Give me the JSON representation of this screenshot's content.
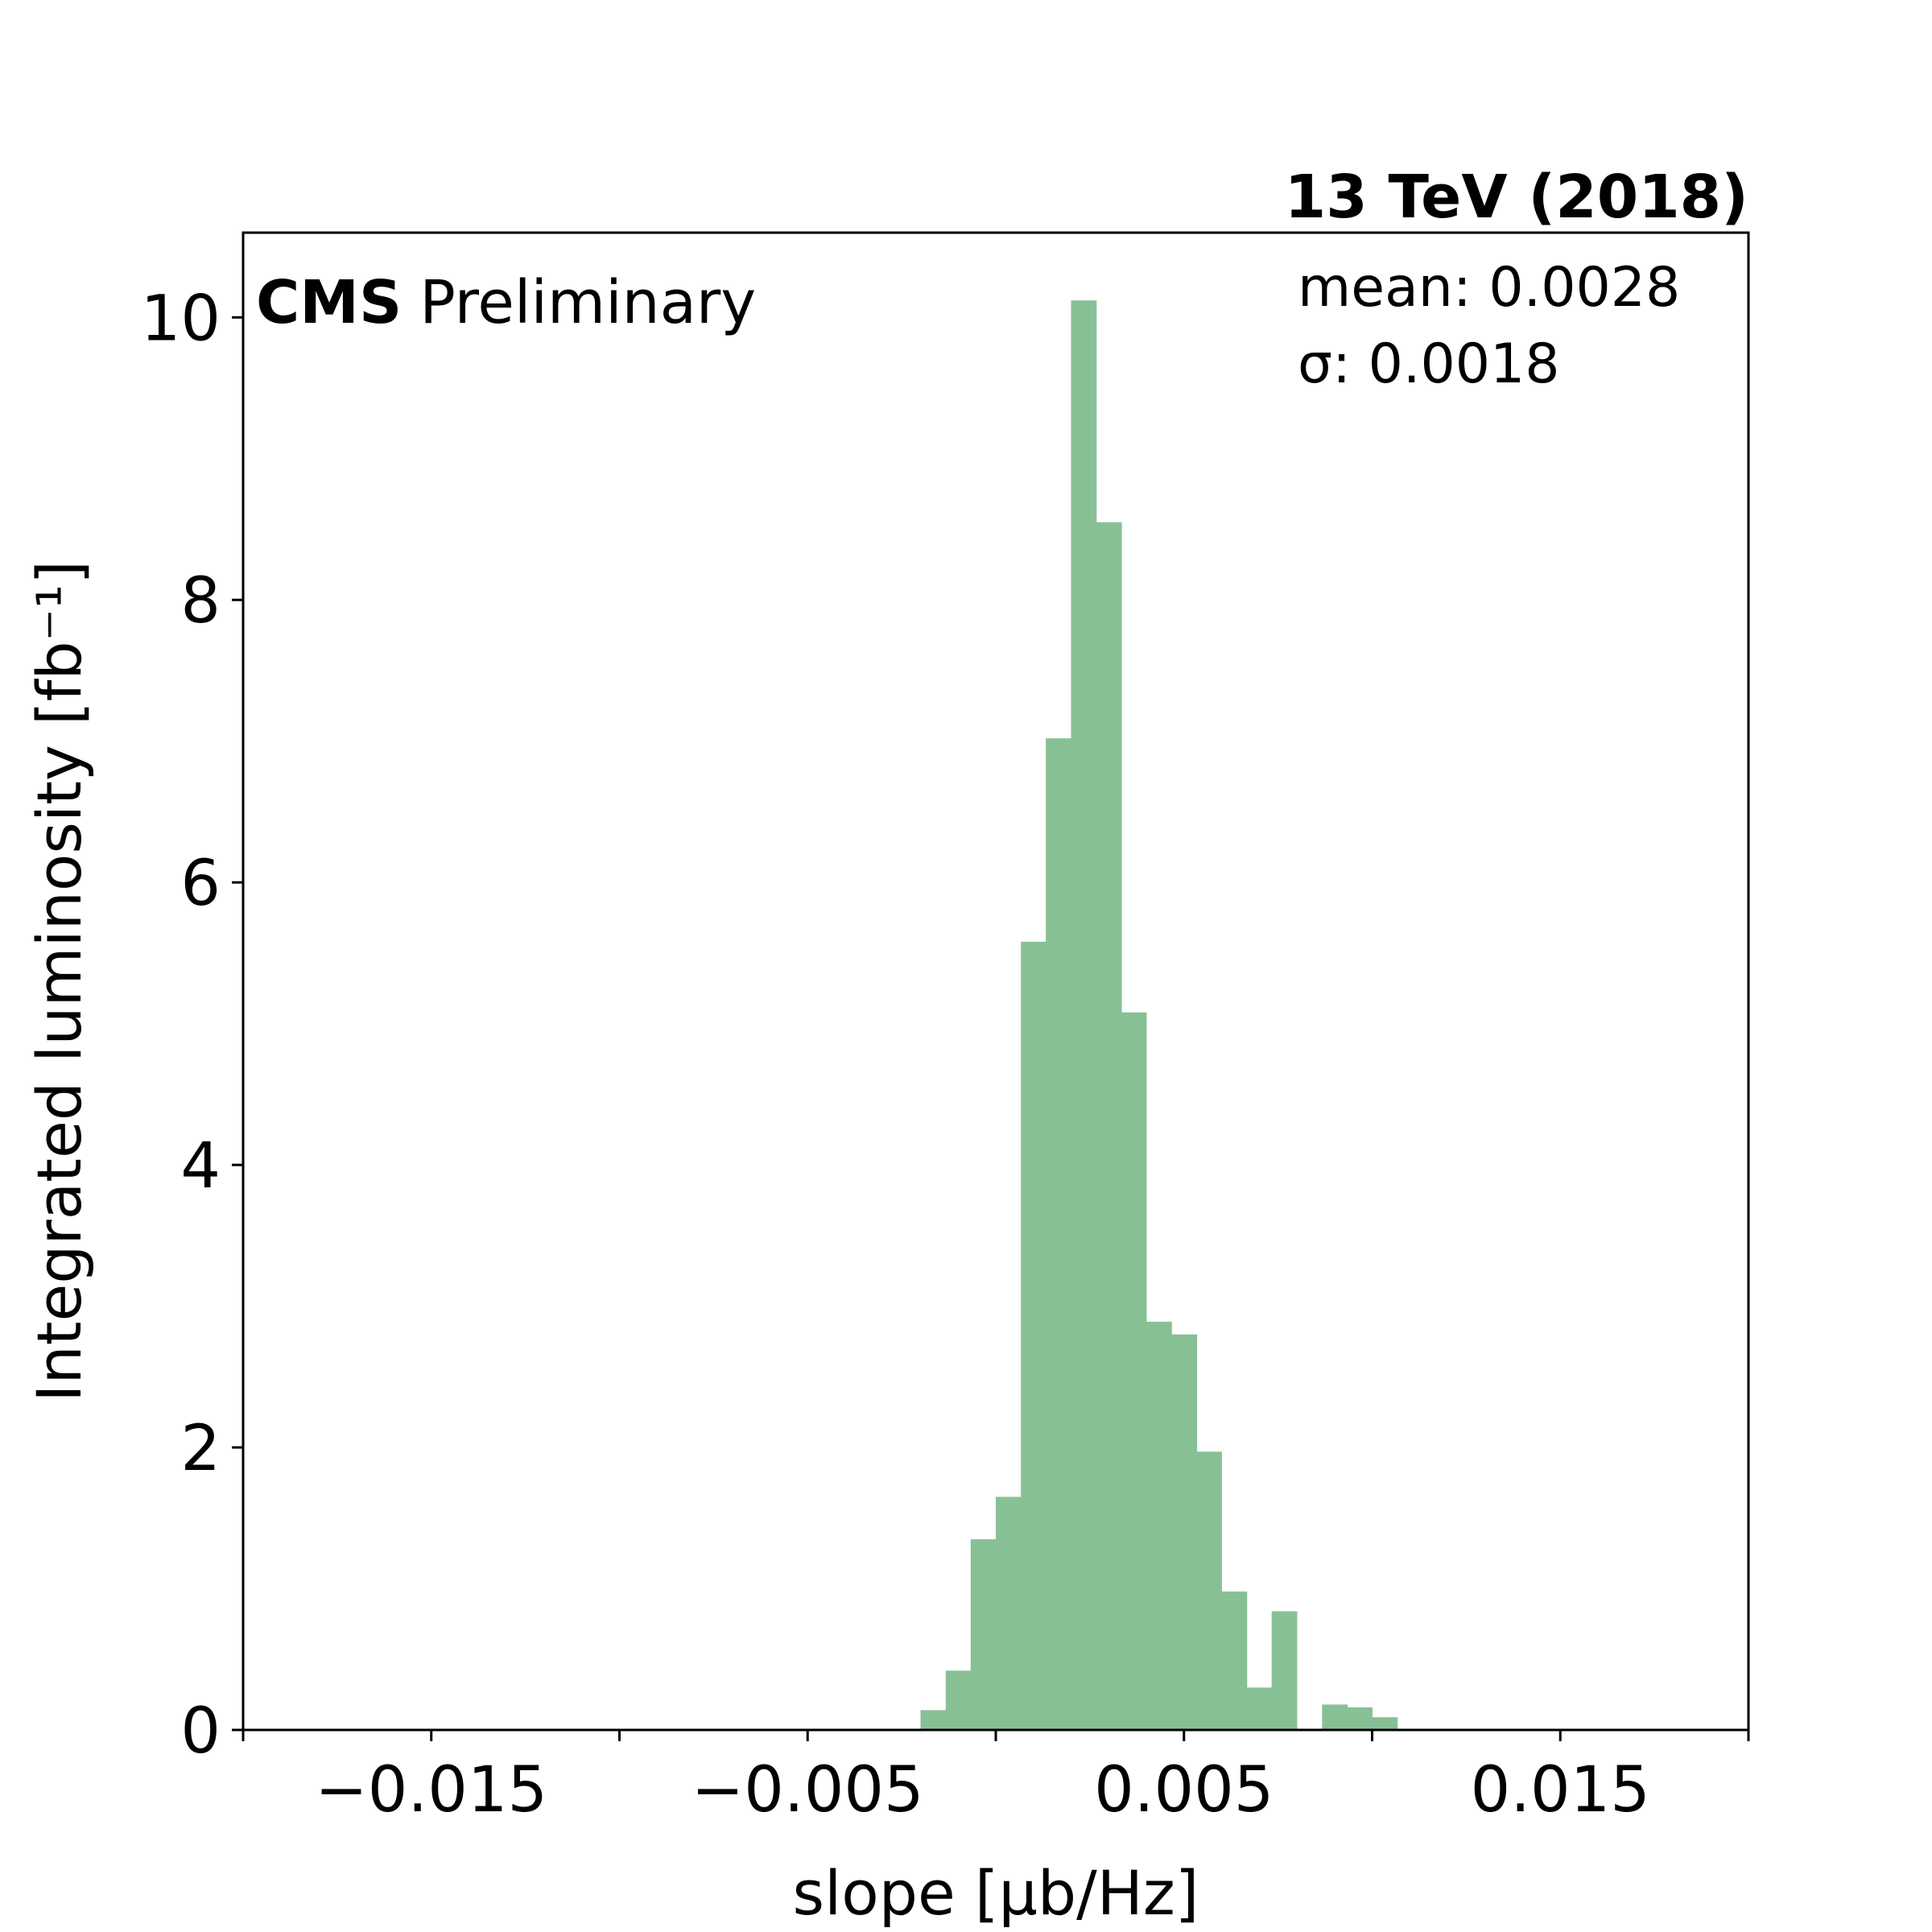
{
  "chart_data": {
    "type": "bar",
    "title": "13 TeV (2018)",
    "label": {
      "experiment": "CMS",
      "status": "Preliminary"
    },
    "stats": {
      "mean": "mean: 0.0028",
      "sigma": "σ: 0.0018"
    },
    "xlabel": "slope [μb/Hz]",
    "ylabel": "Integrated luminosity [fb⁻¹]",
    "xlim": [
      -0.02,
      0.02
    ],
    "ylim": [
      0,
      10.6
    ],
    "x_ticks": [
      -0.02,
      -0.015,
      -0.01,
      -0.005,
      0.0,
      0.005,
      0.01,
      0.015,
      0.02
    ],
    "x_tick_labels": [
      "−0.015",
      "−0.005",
      "0.005",
      "0.015"
    ],
    "x_tick_label_values": [
      -0.015,
      -0.005,
      0.005,
      0.015
    ],
    "y_ticks": [
      0,
      2,
      4,
      6,
      8,
      10
    ],
    "y_tick_labels": [
      "0",
      "2",
      "4",
      "6",
      "8",
      "10"
    ],
    "bar_color": "#88c096",
    "bin_width": 0.000667,
    "bins": [
      {
        "left": -0.002,
        "value": 0.14
      },
      {
        "left": -0.00133,
        "value": 0.42
      },
      {
        "left": -0.000667,
        "value": 1.35
      },
      {
        "left": 0.0,
        "value": 1.65
      },
      {
        "left": 0.000667,
        "value": 5.58
      },
      {
        "left": 0.00133,
        "value": 7.02
      },
      {
        "left": 0.002,
        "value": 10.12
      },
      {
        "left": 0.00267,
        "value": 8.55
      },
      {
        "left": 0.00333,
        "value": 5.08
      },
      {
        "left": 0.004,
        "value": 2.89
      },
      {
        "left": 0.00467,
        "value": 2.8
      },
      {
        "left": 0.00533,
        "value": 1.97
      },
      {
        "left": 0.006,
        "value": 0.98
      },
      {
        "left": 0.00667,
        "value": 0.3
      },
      {
        "left": 0.00733,
        "value": 0.84
      },
      {
        "left": 0.008,
        "value": 0.0
      },
      {
        "left": 0.00867,
        "value": 0.18
      },
      {
        "left": 0.00933,
        "value": 0.16
      },
      {
        "left": 0.01,
        "value": 0.09
      }
    ]
  }
}
